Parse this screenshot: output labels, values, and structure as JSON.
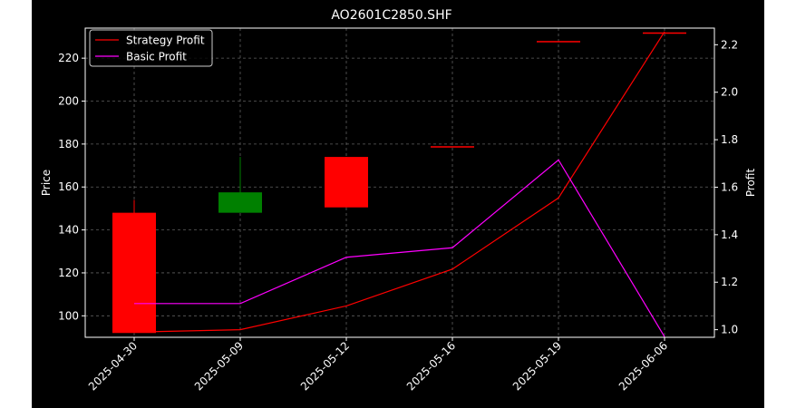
{
  "chart_data": {
    "type": "candlestick",
    "title": "AO2601C2850.SHF",
    "categories": [
      "2025-04-30",
      "2025-05-09",
      "2025-05-12",
      "2025-05-16",
      "2025-05-19",
      "2025-06-06"
    ],
    "ohlc": [
      {
        "open": 148,
        "high": 154,
        "low": 92,
        "close": 92
      },
      {
        "open": 148,
        "high": 174,
        "low": 148,
        "close": 157.5
      },
      {
        "open": 174,
        "high": 174,
        "low": 150.5,
        "close": 150.5
      },
      {
        "open": 179,
        "high": 179,
        "low": 179,
        "close": 178.5
      },
      {
        "open": 228,
        "high": 228,
        "low": 228,
        "close": 227.5
      },
      {
        "open": 232,
        "high": 232,
        "low": 232,
        "close": 231.5
      }
    ],
    "ylabel_left": "Price",
    "ylim_left": [
      90,
      234
    ],
    "yticks_left": [
      100,
      120,
      140,
      160,
      180,
      200,
      220
    ],
    "ylabel_right": "Profit",
    "ylim_right": [
      0.968,
      2.27
    ],
    "yticks_right": [
      1.0,
      1.2,
      1.4,
      1.6,
      1.8,
      2.0,
      2.2
    ],
    "series": [
      {
        "name": "Strategy Profit",
        "color": "#ff0000",
        "values": [
          0.99,
          1.0,
          1.1,
          1.255,
          1.555,
          2.255
        ]
      },
      {
        "name": "Basic Profit",
        "color": "#ff00ff",
        "values": [
          1.11,
          1.11,
          1.305,
          1.345,
          1.715,
          0.97
        ]
      }
    ],
    "candle_colors": {
      "up": "#008000",
      "down": "#ff0000"
    },
    "grid": true,
    "legend_position": "top-left",
    "background": "#000000",
    "foreground": "#ffffff"
  }
}
